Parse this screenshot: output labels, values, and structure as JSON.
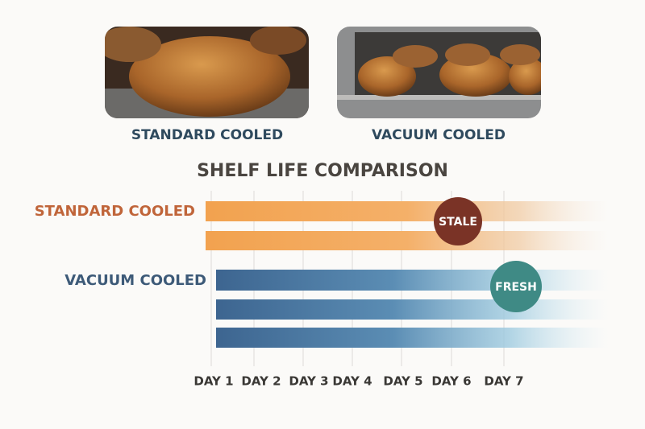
{
  "photos": [
    {
      "caption": "STANDARD COOLED"
    },
    {
      "caption": "VACUUM COOLED"
    }
  ],
  "title": "SHELF LIFE COMPARISON",
  "rows": [
    {
      "label": "STANDARD COOLED",
      "badge": "STALE"
    },
    {
      "label": "VACUUM COOLED",
      "badge": "FRESH"
    }
  ],
  "days": [
    "DAY 1",
    "DAY 2",
    "DAY 3",
    "DAY 4",
    "DAY 5",
    "DAY 6",
    "DAY 7"
  ]
}
